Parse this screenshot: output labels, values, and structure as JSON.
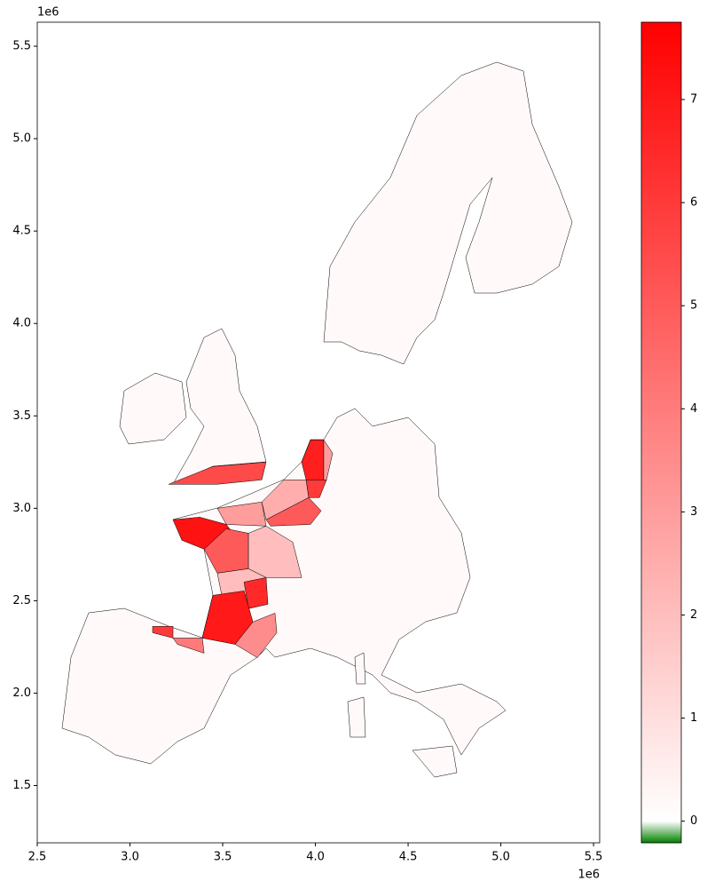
{
  "chart_data": {
    "type": "choropleth",
    "xlim": [
      2.5,
      5.533
    ],
    "ylim": [
      1.19,
      5.63
    ],
    "xticks": [
      {
        "value": 2.5,
        "label": "2.5"
      },
      {
        "value": 3.0,
        "label": "3.0"
      },
      {
        "value": 3.5,
        "label": "3.5"
      },
      {
        "value": 4.0,
        "label": "4.0"
      },
      {
        "value": 4.5,
        "label": "4.5"
      },
      {
        "value": 5.0,
        "label": "5.0"
      },
      {
        "value": 5.5,
        "label": "5.5"
      }
    ],
    "yticks": [
      {
        "value": 1.5,
        "label": "1.5"
      },
      {
        "value": 2.0,
        "label": "2.0"
      },
      {
        "value": 2.5,
        "label": "2.5"
      },
      {
        "value": 3.0,
        "label": "3.0"
      },
      {
        "value": 3.5,
        "label": "3.5"
      },
      {
        "value": 4.0,
        "label": "4.0"
      },
      {
        "value": 4.5,
        "label": "4.5"
      },
      {
        "value": 5.0,
        "label": "5.0"
      },
      {
        "value": 5.5,
        "label": "5.5"
      }
    ],
    "x_offset_label": "1e6",
    "y_offset_label": "1e6",
    "colorbar": {
      "clim": [
        -0.21,
        7.75
      ],
      "ticks": [
        0,
        1,
        2,
        3,
        4,
        5,
        6,
        7
      ],
      "colors": [
        "#008000",
        "#ffffff",
        "#ff0000"
      ]
    },
    "regions": [
      {
        "values": 7.2,
        "x": [
          3.232,
          3.376,
          3.519,
          3.6,
          3.519,
          3.4,
          3.28
        ],
        "y": [
          2.938,
          2.952,
          2.913,
          2.808,
          2.745,
          2.779,
          2.827
        ]
      },
      {
        "values": 5,
        "x": [
          3.4,
          3.519,
          3.639,
          3.639,
          3.471
        ],
        "y": [
          2.779,
          2.889,
          2.865,
          2.673,
          2.649
        ]
      },
      {
        "values": 3,
        "x": [
          3.471,
          3.711,
          3.734,
          3.519
        ],
        "y": [
          3.0,
          3.034,
          2.904,
          2.913
        ]
      },
      {
        "values": 2,
        "x": [
          3.639,
          3.734,
          3.878,
          3.926,
          3.734,
          3.639
        ],
        "y": [
          2.865,
          2.904,
          2.817,
          2.625,
          2.625,
          2.673
        ]
      },
      {
        "values": 2,
        "x": [
          3.471,
          3.639,
          3.734,
          3.687,
          3.495
        ],
        "y": [
          2.649,
          2.673,
          2.625,
          2.529,
          2.529
        ]
      },
      {
        "values": 6.5,
        "x": [
          3.615,
          3.734,
          3.744,
          3.639
        ],
        "y": [
          2.601,
          2.625,
          2.481,
          2.457
        ]
      },
      {
        "values": 7,
        "x": [
          3.447,
          3.615,
          3.663,
          3.567,
          3.39
        ],
        "y": [
          2.529,
          2.553,
          2.385,
          2.264,
          2.298
        ]
      },
      {
        "values": 3.5,
        "x": [
          3.567,
          3.663,
          3.782,
          3.792,
          3.687
        ],
        "y": [
          2.264,
          2.385,
          2.433,
          2.327,
          2.192
        ]
      },
      {
        "values": 4,
        "x": [
          3.232,
          3.39,
          3.4,
          3.256
        ],
        "y": [
          2.298,
          2.298,
          2.216,
          2.264
        ]
      },
      {
        "values": 6,
        "x": [
          3.122,
          3.232,
          3.232,
          3.122
        ],
        "y": [
          2.361,
          2.361,
          2.298,
          2.327
        ]
      },
      {
        "values": 2.5,
        "x": [
          3.711,
          3.83,
          3.95,
          3.964,
          3.734
        ],
        "y": [
          3.034,
          3.154,
          3.154,
          3.058,
          2.938
        ]
      },
      {
        "values": 5,
        "x": [
          3.734,
          3.964,
          4.031,
          3.974,
          3.758
        ],
        "y": [
          2.938,
          3.058,
          2.986,
          2.913,
          2.904
        ]
      },
      {
        "values": 6.8,
        "x": [
          3.926,
          3.974,
          4.045,
          4.045,
          3.95
        ],
        "y": [
          3.25,
          3.37,
          3.37,
          3.154,
          3.154
        ]
      },
      {
        "values": 3,
        "x": [
          4.045,
          4.093,
          4.06,
          4.045
        ],
        "y": [
          3.37,
          3.298,
          3.154,
          3.154
        ]
      },
      {
        "values": 6,
        "x": [
          3.95,
          4.06,
          4.022,
          3.964
        ],
        "y": [
          3.154,
          3.154,
          3.058,
          3.058
        ]
      },
      {
        "values": 5.5,
        "x": [
          3.208,
          3.447,
          3.734,
          3.711,
          3.471
        ],
        "y": [
          3.13,
          3.226,
          3.25,
          3.154,
          3.13
        ]
      }
    ]
  }
}
